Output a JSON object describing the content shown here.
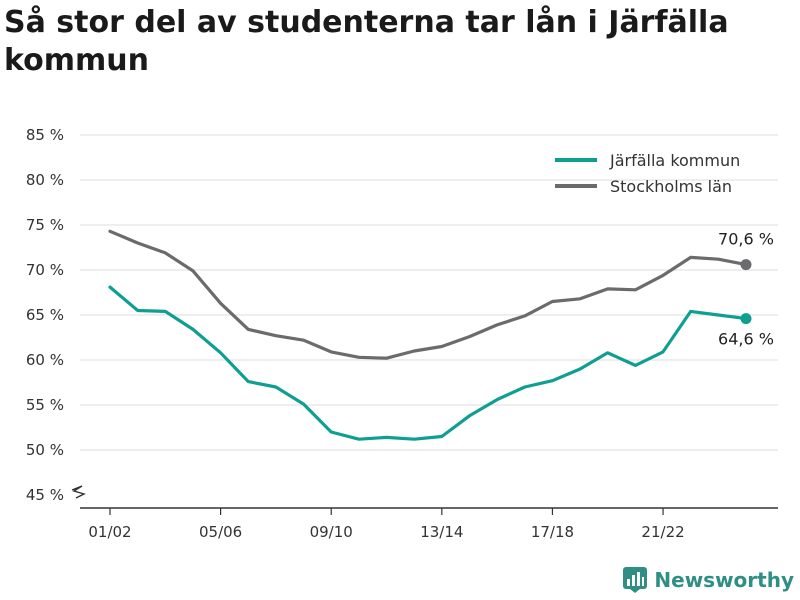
{
  "title": "Så stor del av studenterna tar lån i Järfälla kommun",
  "brand": {
    "name": "Newsworthy"
  },
  "colors": {
    "jarfalla": "#0f9e92",
    "stockholm": "#6b6b6e",
    "grid": "#dddddd",
    "brand": "#2f8f84"
  },
  "chart_data": {
    "type": "line",
    "title": "Så stor del av studenterna tar lån i Järfälla kommun",
    "xlabel": "",
    "ylabel": "",
    "ylim": [
      45,
      85
    ],
    "y_ticks": [
      45,
      50,
      55,
      60,
      65,
      70,
      75,
      80,
      85
    ],
    "y_tick_labels": [
      "45 %",
      "50 %",
      "55 %",
      "60 %",
      "65 %",
      "70 %",
      "75 %",
      "80 %",
      "85 %"
    ],
    "y_axis_break": true,
    "grid": true,
    "legend_position": "top-right",
    "categories": [
      "01/02",
      "02/03",
      "03/04",
      "04/05",
      "05/06",
      "06/07",
      "07/08",
      "08/09",
      "09/10",
      "10/11",
      "11/12",
      "12/13",
      "13/14",
      "14/15",
      "15/16",
      "16/17",
      "17/18",
      "18/19",
      "19/20",
      "20/21",
      "21/22",
      "22/23",
      "23/24",
      "24/25"
    ],
    "x_tick_labels": [
      "01/02",
      "05/06",
      "09/10",
      "13/14",
      "17/18",
      "21/22"
    ],
    "series": [
      {
        "name": "Järfälla kommun",
        "color": "#0f9e92",
        "values": [
          68.1,
          65.5,
          65.4,
          63.4,
          60.8,
          57.6,
          57.0,
          55.1,
          52.0,
          51.2,
          51.4,
          51.2,
          51.5,
          53.8,
          55.6,
          57.0,
          57.7,
          59.0,
          60.8,
          59.4,
          60.9,
          65.4,
          65.0,
          64.6
        ],
        "end_label": "64,6 %"
      },
      {
        "name": "Stockholms län",
        "color": "#6b6b6e",
        "values": [
          74.3,
          73.0,
          71.9,
          69.9,
          66.3,
          63.4,
          62.7,
          62.2,
          60.9,
          60.3,
          60.2,
          61.0,
          61.5,
          62.6,
          63.9,
          64.9,
          66.5,
          66.8,
          67.9,
          67.8,
          69.4,
          71.4,
          71.2,
          70.6
        ],
        "end_label": "70,6 %"
      }
    ]
  }
}
